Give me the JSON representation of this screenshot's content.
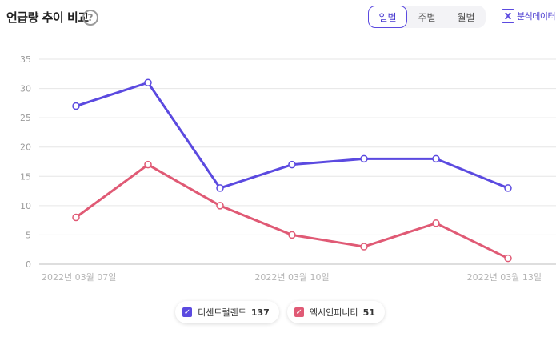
{
  "header": {
    "title": "언급량 추이 비교",
    "help_glyph": "?",
    "period_tabs": [
      {
        "label": "일별",
        "active": true
      },
      {
        "label": "주별",
        "active": false
      },
      {
        "label": "월별",
        "active": false
      }
    ],
    "export_label": "분석데이터",
    "export_icon": "excel-icon",
    "export_glyph": "X"
  },
  "legend": [
    {
      "name": "디센트럴랜드",
      "count": "137",
      "color": "#5b4ae0",
      "check": "✓"
    },
    {
      "name": "엑시인피니티",
      "count": "51",
      "color": "#e05a75",
      "check": "✓"
    }
  ],
  "chart_data": {
    "type": "line",
    "title": "",
    "xlabel": "",
    "ylabel": "",
    "x": [
      "2022-03-07",
      "2022-03-08",
      "2022-03-09",
      "2022-03-10",
      "2022-03-11",
      "2022-03-12",
      "2022-03-13"
    ],
    "x_tick_labels": [
      "2022년 03월 07일",
      "2022년 03월 10일",
      "2022년 03월 13일"
    ],
    "x_tick_indices": [
      0,
      3,
      6
    ],
    "ylim": [
      0,
      35
    ],
    "yticks": [
      "0",
      "5",
      "10",
      "15",
      "20",
      "25",
      "30",
      "35"
    ],
    "grid": true,
    "legend_position": "bottom",
    "series": [
      {
        "name": "디센트럴랜드",
        "color": "#5b4ae0",
        "values": [
          27,
          31,
          13,
          17,
          18,
          18,
          13
        ]
      },
      {
        "name": "엑시인피니티",
        "color": "#e05a75",
        "values": [
          8,
          17,
          10,
          5,
          3,
          7,
          1
        ]
      }
    ]
  }
}
